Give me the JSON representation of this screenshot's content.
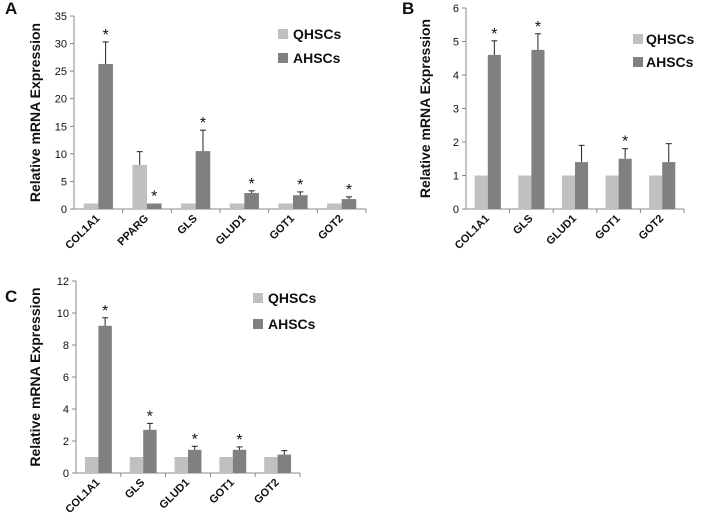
{
  "chart_data": [
    {
      "panel": "A",
      "type": "bar",
      "ylabel": "Relative mRNA Expression",
      "ylim": [
        0,
        35
      ],
      "yticks": [
        0,
        5,
        10,
        15,
        20,
        25,
        30,
        35
      ],
      "categories": [
        "COL1A1",
        "PPARG",
        "GLS",
        "GLUD1",
        "GOT1",
        "GOT2"
      ],
      "series": [
        {
          "name": "QHSCs",
          "color": "#c0c0c0",
          "values": [
            1,
            8,
            1,
            1,
            1,
            1
          ],
          "errors": [
            0,
            2.4,
            0,
            0,
            0,
            0
          ]
        },
        {
          "name": "AHSCs",
          "color": "#808080",
          "values": [
            26.3,
            1.0,
            10.5,
            2.9,
            2.5,
            1.8
          ],
          "errors": [
            4.0,
            0,
            3.8,
            0.4,
            0.6,
            0.4
          ]
        }
      ],
      "significance": [
        {
          "category": "COL1A1",
          "series": 1,
          "label": "*"
        },
        {
          "category": "PPARG",
          "series": 1,
          "label": "*"
        },
        {
          "category": "GLS",
          "series": 1,
          "label": "*"
        },
        {
          "category": "GLUD1",
          "series": 1,
          "label": "*"
        },
        {
          "category": "GOT1",
          "series": 1,
          "label": "*"
        },
        {
          "category": "GOT2",
          "series": 1,
          "label": "*"
        }
      ],
      "legend": "top-right"
    },
    {
      "panel": "B",
      "type": "bar",
      "ylabel": "Relative mRNA Expression",
      "ylim": [
        0,
        6
      ],
      "yticks": [
        0,
        1,
        2,
        3,
        4,
        5,
        6
      ],
      "categories": [
        "COL1A1",
        "GLS",
        "GLUD1",
        "GOT1",
        "GOT2"
      ],
      "series": [
        {
          "name": "QHSCs",
          "color": "#c0c0c0",
          "values": [
            1,
            1,
            1,
            1,
            1
          ],
          "errors": [
            0,
            0,
            0,
            0,
            0
          ]
        },
        {
          "name": "AHSCs",
          "color": "#808080",
          "values": [
            4.6,
            4.75,
            1.4,
            1.5,
            1.4
          ],
          "errors": [
            0.42,
            0.48,
            0.5,
            0.3,
            0.55
          ]
        }
      ],
      "significance": [
        {
          "category": "COL1A1",
          "series": 1,
          "label": "*"
        },
        {
          "category": "GLS",
          "series": 1,
          "label": "*"
        },
        {
          "category": "GOT1",
          "series": 1,
          "label": "*"
        }
      ],
      "legend": "top-right"
    },
    {
      "panel": "C",
      "type": "bar",
      "ylabel": "Relative mRNA Expression",
      "ylim": [
        0,
        12
      ],
      "yticks": [
        0,
        2,
        4,
        6,
        8,
        10,
        12
      ],
      "categories": [
        "COL1A1",
        "GLS",
        "GLUD1",
        "GOT1",
        "GOT2"
      ],
      "series": [
        {
          "name": "QHSCs",
          "color": "#c0c0c0",
          "values": [
            1,
            1,
            1,
            1,
            1
          ],
          "errors": [
            0,
            0,
            0,
            0,
            0
          ]
        },
        {
          "name": "AHSCs",
          "color": "#808080",
          "values": [
            9.2,
            2.7,
            1.45,
            1.45,
            1.15
          ],
          "errors": [
            0.5,
            0.4,
            0.22,
            0.18,
            0.25
          ]
        }
      ],
      "significance": [
        {
          "category": "COL1A1",
          "series": 1,
          "label": "*"
        },
        {
          "category": "GLS",
          "series": 1,
          "label": "*"
        },
        {
          "category": "GLUD1",
          "series": 1,
          "label": "*"
        },
        {
          "category": "GOT1",
          "series": 1,
          "label": "*"
        }
      ],
      "legend": "top-right"
    }
  ]
}
